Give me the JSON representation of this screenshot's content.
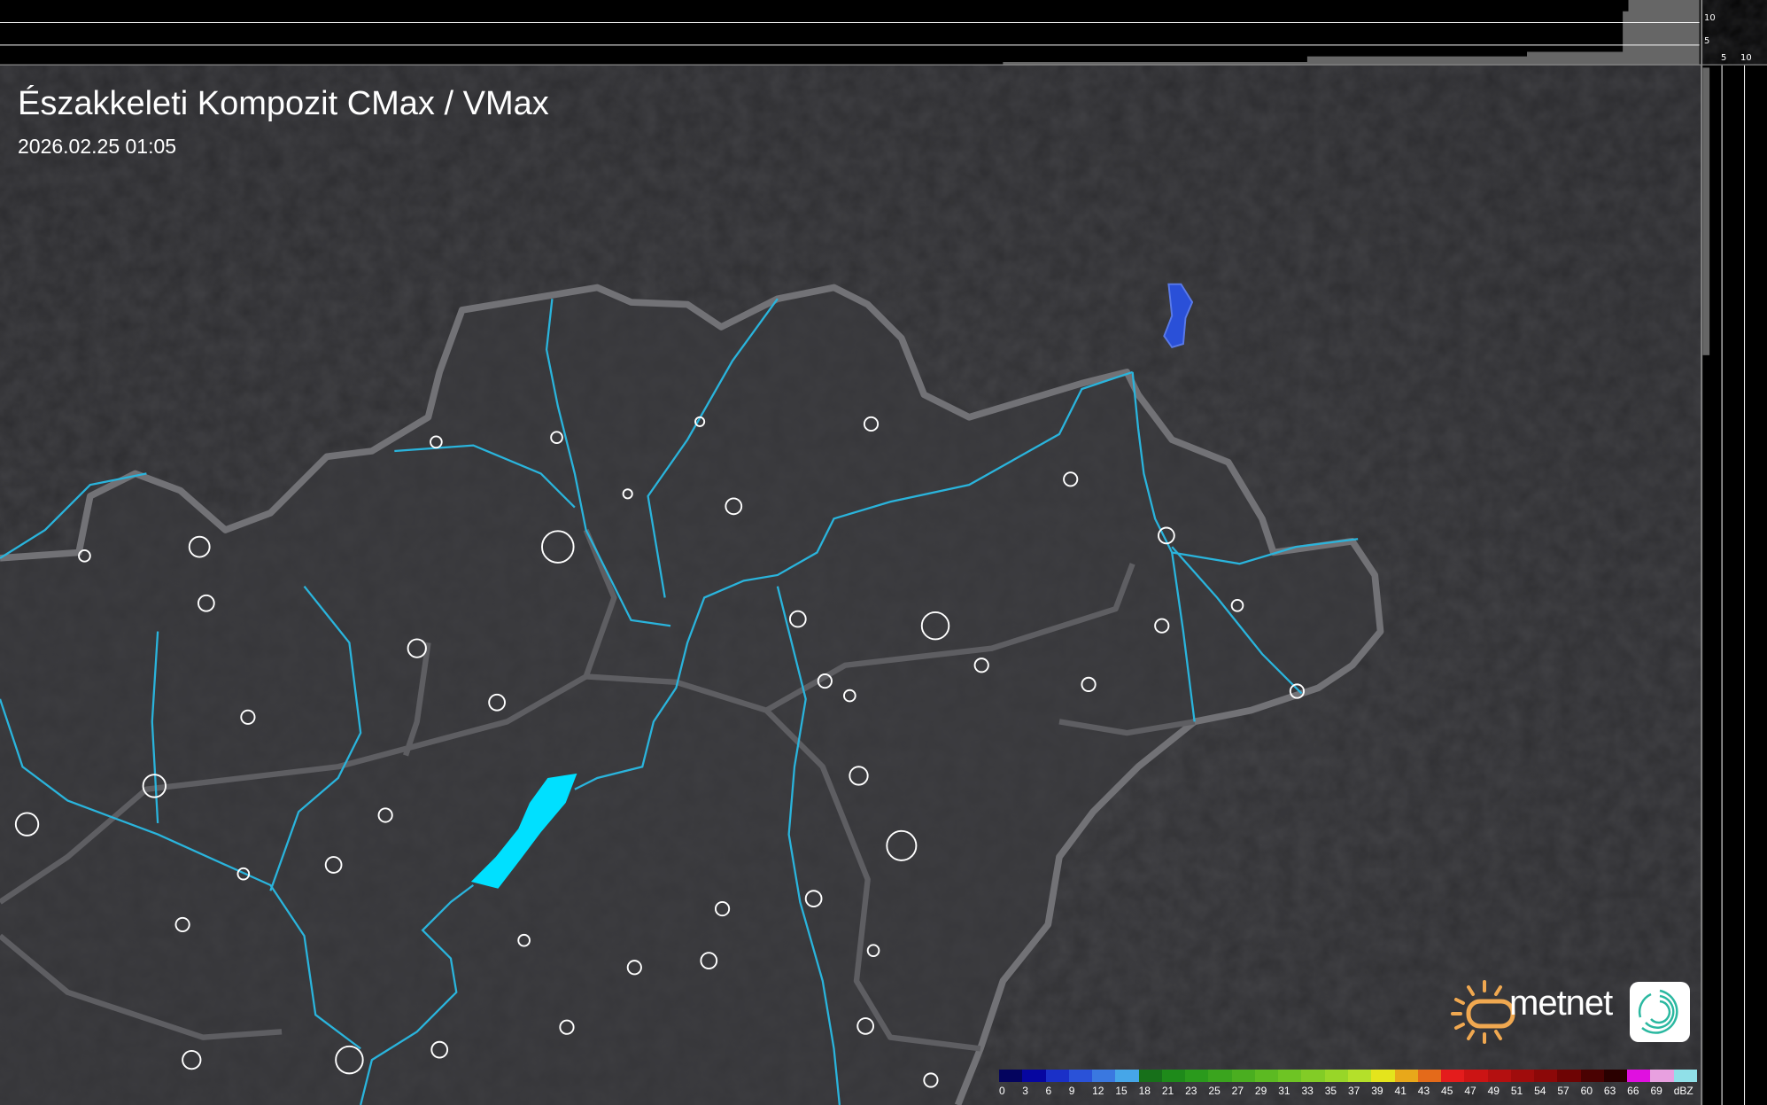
{
  "header": {
    "title": "Északkeleti Kompozit CMax / VMax",
    "timestamp": "2026.02.25 01:05"
  },
  "side_profiles": {
    "top_axis_labels": [
      "10",
      "5"
    ],
    "right_axis_labels": [
      "5",
      "10"
    ]
  },
  "legend": {
    "unit": "dBZ",
    "labels": [
      "0",
      "3",
      "6",
      "9",
      "12",
      "15",
      "18",
      "21",
      "23",
      "25",
      "27",
      "29",
      "31",
      "33",
      "35",
      "37",
      "39",
      "41",
      "43",
      "45",
      "47",
      "49",
      "51",
      "54",
      "57",
      "60",
      "63",
      "66",
      "69"
    ],
    "colors": [
      "#04045e",
      "#0606a0",
      "#1a30c8",
      "#2a52d8",
      "#3a78e0",
      "#46a6e8",
      "#17701a",
      "#1e8a1a",
      "#2a9a1c",
      "#3aa41e",
      "#4aae20",
      "#5cba22",
      "#6ec424",
      "#82cc26",
      "#98d628",
      "#b4e02a",
      "#e4e41c",
      "#e8a81a",
      "#e46a1a",
      "#e41c1c",
      "#cc1414",
      "#b41010",
      "#a00c0c",
      "#8c0808",
      "#6e0404",
      "#4a0202",
      "#2a0000",
      "#e010e0",
      "#e8a0e0",
      "#90e0e8"
    ]
  },
  "logo": {
    "text": "metnet"
  },
  "colors": {
    "background": "#303034",
    "rivers": "#2ab4dc",
    "borders": "#6e6e72",
    "lake": "#00e0ff",
    "echo": "#2a50d8"
  }
}
